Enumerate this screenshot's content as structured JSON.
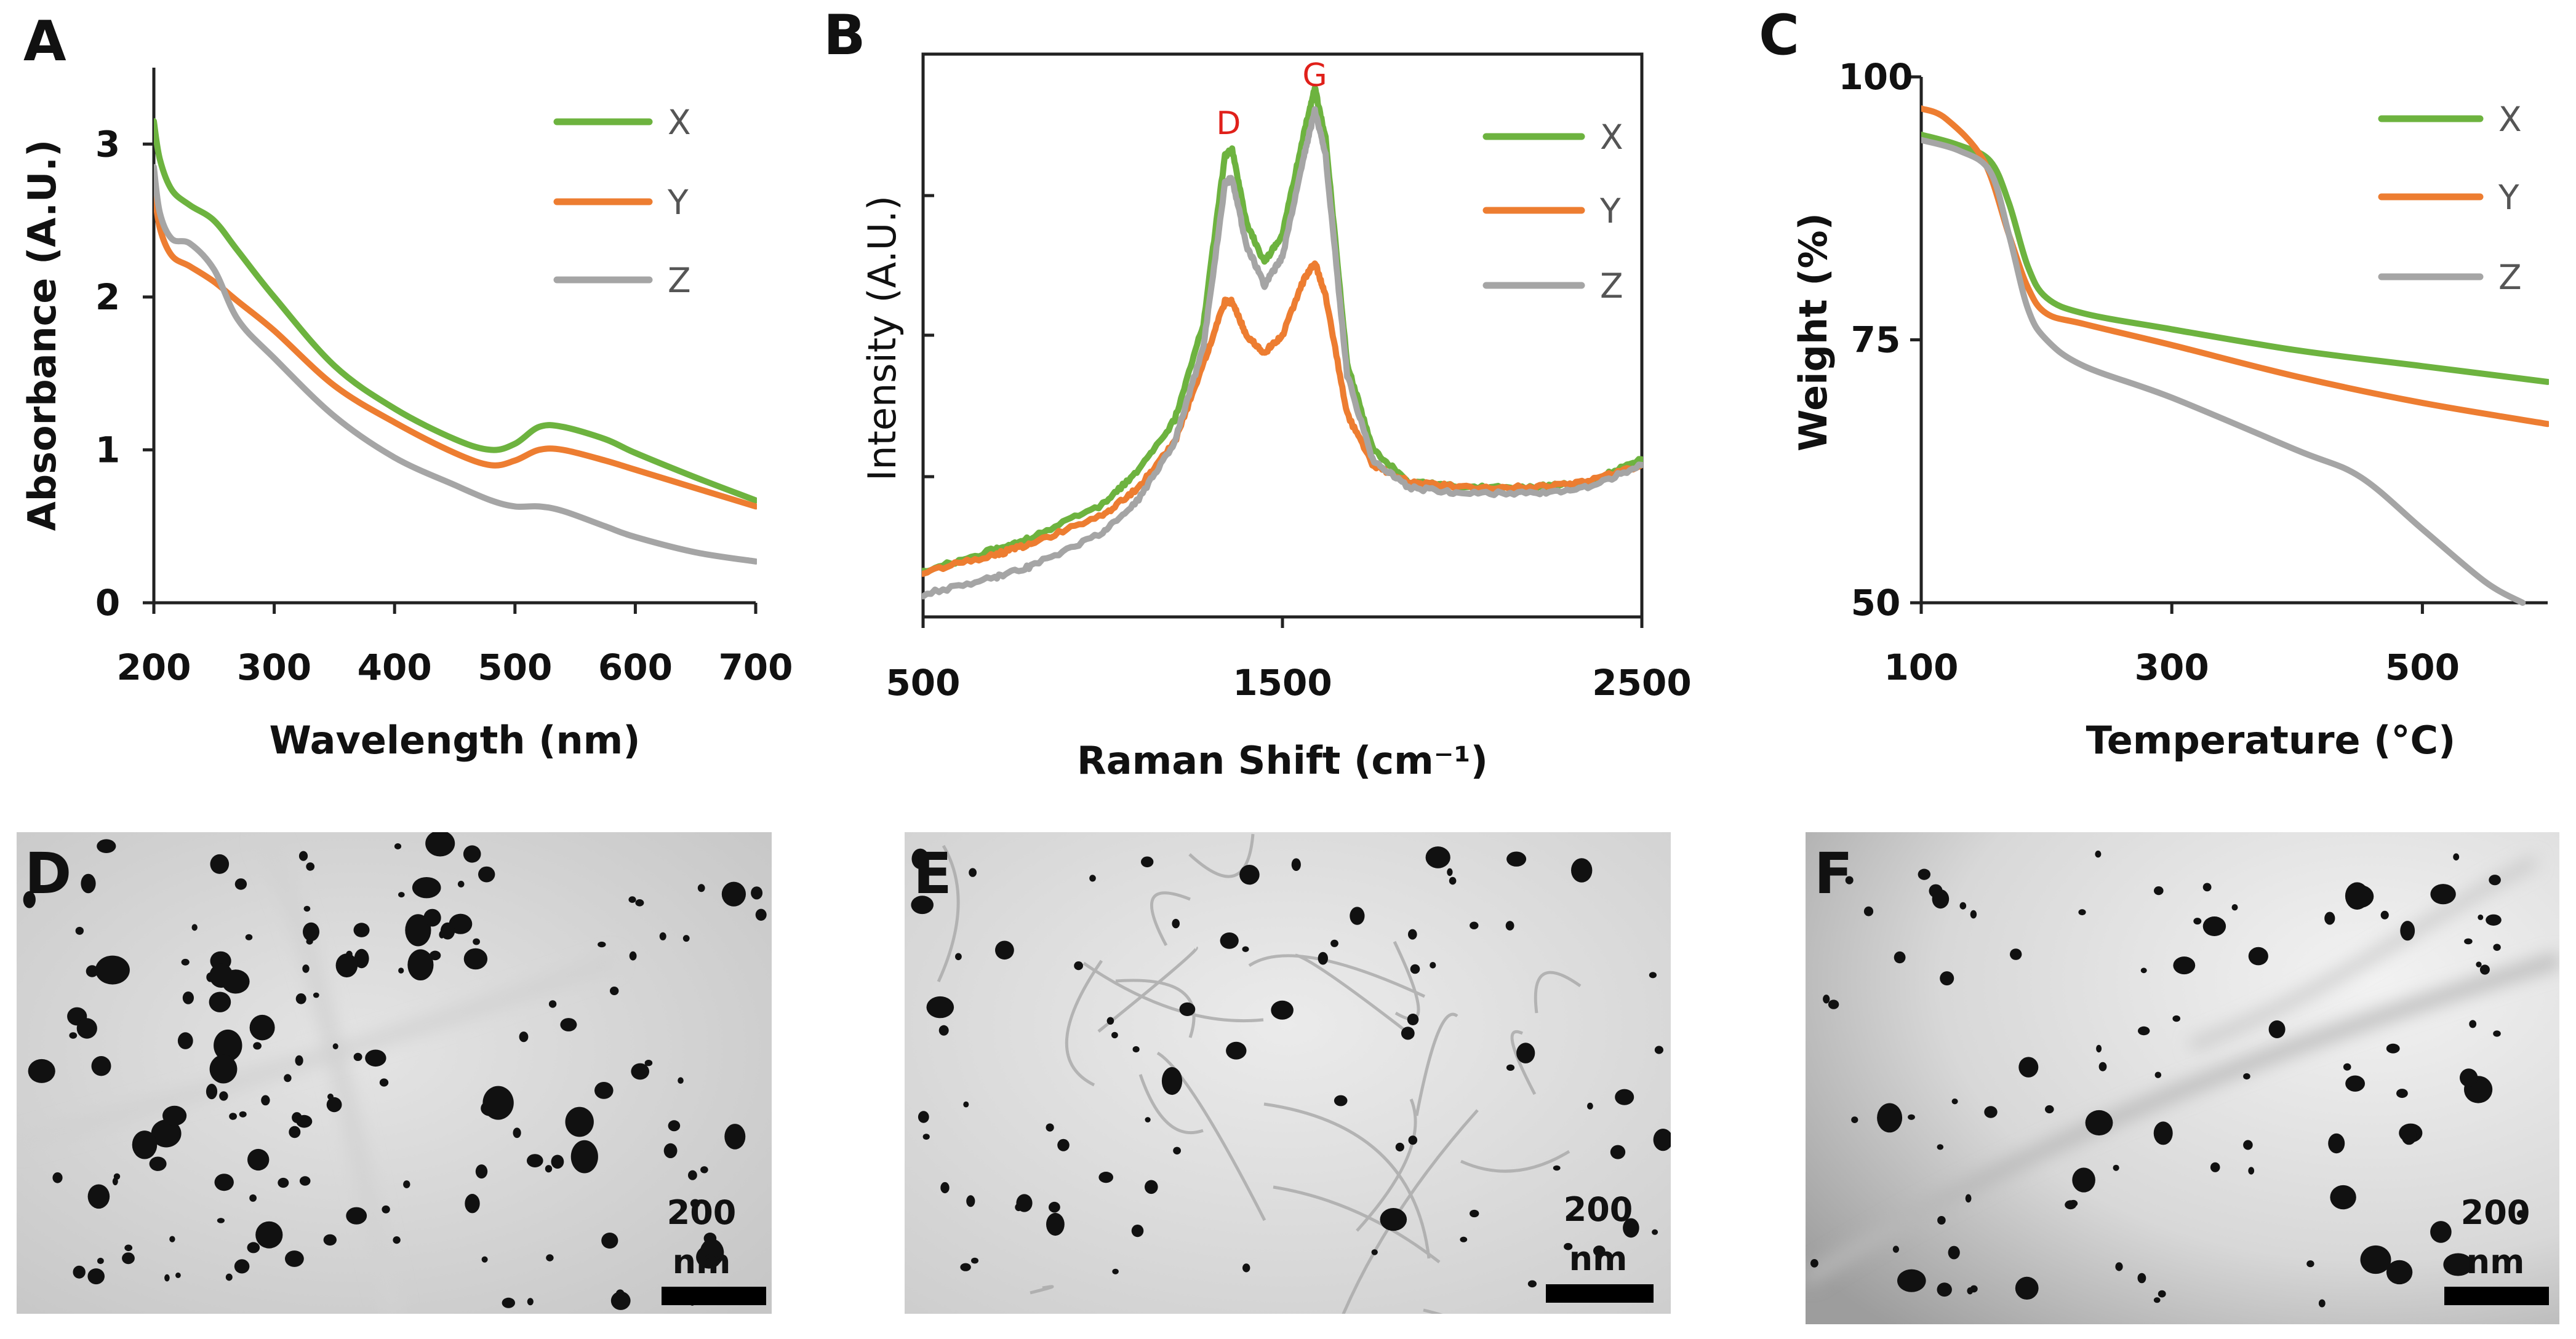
{
  "colors": {
    "X": "#6db33f",
    "Y": "#ed7d31",
    "Z": "#a5a5a5",
    "peak": "#e0201a"
  },
  "chart_data": [
    {
      "panel": "A",
      "type": "line",
      "xlabel": "Wavelength (nm)",
      "ylabel": "Absorbance (A.U.)",
      "xlim": [
        200,
        700
      ],
      "ylim": [
        0,
        3.5
      ],
      "xticks": [
        200,
        300,
        400,
        500,
        600,
        700
      ],
      "yticks": [
        0,
        1,
        2,
        3
      ],
      "legend": [
        "X",
        "Y",
        "Z"
      ],
      "legend_position": "top-right",
      "series": [
        {
          "name": "X",
          "points": [
            [
              200,
              3.15
            ],
            [
              205,
              2.9
            ],
            [
              215,
              2.7
            ],
            [
              230,
              2.6
            ],
            [
              250,
              2.5
            ],
            [
              270,
              2.3
            ],
            [
              300,
              2.0
            ],
            [
              350,
              1.55
            ],
            [
              400,
              1.27
            ],
            [
              450,
              1.07
            ],
            [
              480,
              1.0
            ],
            [
              500,
              1.04
            ],
            [
              520,
              1.15
            ],
            [
              540,
              1.15
            ],
            [
              575,
              1.07
            ],
            [
              600,
              0.98
            ],
            [
              650,
              0.82
            ],
            [
              700,
              0.67
            ]
          ]
        },
        {
          "name": "Y",
          "points": [
            [
              200,
              2.72
            ],
            [
              205,
              2.45
            ],
            [
              215,
              2.27
            ],
            [
              230,
              2.2
            ],
            [
              250,
              2.1
            ],
            [
              270,
              1.97
            ],
            [
              300,
              1.78
            ],
            [
              350,
              1.42
            ],
            [
              400,
              1.18
            ],
            [
              450,
              0.98
            ],
            [
              480,
              0.9
            ],
            [
              500,
              0.93
            ],
            [
              520,
              1.0
            ],
            [
              540,
              1.0
            ],
            [
              575,
              0.93
            ],
            [
              600,
              0.87
            ],
            [
              650,
              0.75
            ],
            [
              700,
              0.63
            ]
          ]
        },
        {
          "name": "Z",
          "points": [
            [
              200,
              2.85
            ],
            [
              205,
              2.55
            ],
            [
              215,
              2.38
            ],
            [
              230,
              2.35
            ],
            [
              250,
              2.18
            ],
            [
              270,
              1.85
            ],
            [
              300,
              1.6
            ],
            [
              350,
              1.22
            ],
            [
              400,
              0.95
            ],
            [
              450,
              0.77
            ],
            [
              480,
              0.67
            ],
            [
              500,
              0.63
            ],
            [
              520,
              0.63
            ],
            [
              540,
              0.6
            ],
            [
              575,
              0.5
            ],
            [
              600,
              0.43
            ],
            [
              650,
              0.33
            ],
            [
              700,
              0.27
            ]
          ]
        }
      ]
    },
    {
      "panel": "B",
      "type": "line",
      "xlabel": "Raman Shift (cm⁻¹)",
      "ylabel": "Intensity (A.U.)",
      "xlim": [
        500,
        2500
      ],
      "ylim": [
        0,
        1
      ],
      "xticks": [
        500,
        1500,
        2500
      ],
      "legend": [
        "X",
        "Y",
        "Z"
      ],
      "legend_position": "top-right",
      "peak_labels": [
        {
          "text": "D",
          "x": 1350
        },
        {
          "text": "G",
          "x": 1590
        }
      ],
      "series": [
        {
          "name": "X",
          "points": [
            [
              500,
              0.08
            ],
            [
              700,
              0.12
            ],
            [
              800,
              0.14
            ],
            [
              1000,
              0.2
            ],
            [
              1100,
              0.26
            ],
            [
              1200,
              0.35
            ],
            [
              1280,
              0.52
            ],
            [
              1340,
              0.82
            ],
            [
              1360,
              0.83
            ],
            [
              1400,
              0.7
            ],
            [
              1450,
              0.63
            ],
            [
              1500,
              0.68
            ],
            [
              1560,
              0.86
            ],
            [
              1590,
              0.94
            ],
            [
              1620,
              0.85
            ],
            [
              1680,
              0.45
            ],
            [
              1750,
              0.3
            ],
            [
              1850,
              0.24
            ],
            [
              2000,
              0.23
            ],
            [
              2200,
              0.23
            ],
            [
              2350,
              0.24
            ],
            [
              2500,
              0.28
            ]
          ]
        },
        {
          "name": "Y",
          "points": [
            [
              500,
              0.08
            ],
            [
              700,
              0.11
            ],
            [
              800,
              0.13
            ],
            [
              1000,
              0.18
            ],
            [
              1100,
              0.23
            ],
            [
              1200,
              0.31
            ],
            [
              1280,
              0.45
            ],
            [
              1340,
              0.56
            ],
            [
              1360,
              0.56
            ],
            [
              1400,
              0.5
            ],
            [
              1450,
              0.47
            ],
            [
              1500,
              0.5
            ],
            [
              1560,
              0.6
            ],
            [
              1590,
              0.63
            ],
            [
              1620,
              0.57
            ],
            [
              1680,
              0.36
            ],
            [
              1750,
              0.27
            ],
            [
              1850,
              0.24
            ],
            [
              2000,
              0.23
            ],
            [
              2200,
              0.23
            ],
            [
              2350,
              0.24
            ],
            [
              2500,
              0.27
            ]
          ]
        },
        {
          "name": "Z",
          "points": [
            [
              500,
              0.04
            ],
            [
              700,
              0.07
            ],
            [
              800,
              0.09
            ],
            [
              1000,
              0.15
            ],
            [
              1100,
              0.21
            ],
            [
              1200,
              0.31
            ],
            [
              1280,
              0.48
            ],
            [
              1340,
              0.77
            ],
            [
              1360,
              0.78
            ],
            [
              1400,
              0.66
            ],
            [
              1450,
              0.59
            ],
            [
              1500,
              0.64
            ],
            [
              1560,
              0.82
            ],
            [
              1590,
              0.9
            ],
            [
              1620,
              0.82
            ],
            [
              1680,
              0.43
            ],
            [
              1750,
              0.28
            ],
            [
              1850,
              0.23
            ],
            [
              2000,
              0.22
            ],
            [
              2200,
              0.22
            ],
            [
              2350,
              0.23
            ],
            [
              2500,
              0.27
            ]
          ]
        }
      ]
    },
    {
      "panel": "C",
      "type": "line",
      "xlabel": "Temperature (°C)",
      "ylabel": "Weight (%)",
      "xlim": [
        100,
        600
      ],
      "ylim": [
        50,
        100
      ],
      "xticks": [
        100,
        300,
        500
      ],
      "yticks": [
        50,
        75,
        100
      ],
      "legend": [
        "X",
        "Y",
        "Z"
      ],
      "legend_position": "top-right",
      "series": [
        {
          "name": "X",
          "points": [
            [
              100,
              94.5
            ],
            [
              130,
              93.5
            ],
            [
              155,
              92
            ],
            [
              170,
              88
            ],
            [
              185,
              82
            ],
            [
              200,
              79
            ],
            [
              230,
              77.5
            ],
            [
              300,
              76
            ],
            [
              400,
              74
            ],
            [
              500,
              72.5
            ],
            [
              600,
              71
            ]
          ]
        },
        {
          "name": "Y",
          "points": [
            [
              100,
              97
            ],
            [
              120,
              96
            ],
            [
              150,
              92
            ],
            [
              170,
              85
            ],
            [
              185,
              80
            ],
            [
              200,
              77.5
            ],
            [
              230,
              76.5
            ],
            [
              300,
              74.5
            ],
            [
              400,
              71.5
            ],
            [
              500,
              69
            ],
            [
              600,
              67
            ]
          ]
        },
        {
          "name": "Z",
          "points": [
            [
              100,
              94
            ],
            [
              130,
              93
            ],
            [
              155,
              91
            ],
            [
              170,
              85
            ],
            [
              185,
              78
            ],
            [
              200,
              75
            ],
            [
              230,
              72.5
            ],
            [
              300,
              69.5
            ],
            [
              400,
              64.5
            ],
            [
              450,
              62
            ],
            [
              500,
              57
            ],
            [
              550,
              52
            ],
            [
              580,
              50
            ]
          ]
        }
      ]
    }
  ],
  "images": [
    {
      "panel": "D",
      "scale_value": "200",
      "scale_unit": "nm"
    },
    {
      "panel": "E",
      "scale_value": "200",
      "scale_unit": "nm"
    },
    {
      "panel": "F",
      "scale_value": "200",
      "scale_unit": "nm"
    }
  ]
}
